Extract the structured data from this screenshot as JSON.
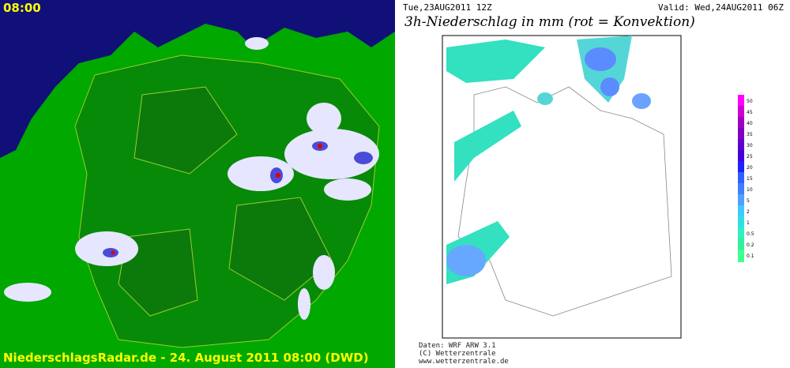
{
  "radar": {
    "time": "08:00",
    "caption": "NiederschlagsRadar.de - 24. August 2011 08:00 (DWD)"
  },
  "model": {
    "run": "Tue,23AUG2011 12Z",
    "valid": "Valid: Wed,24AUG2011 06Z",
    "title": "3h-Niederschlag in mm (rot = Konvektion)",
    "scale": [
      50,
      45,
      40,
      35,
      30,
      25,
      20,
      15,
      10,
      5,
      2,
      1,
      0.5,
      0.2,
      0.1
    ],
    "footer": [
      "Daten: WRF ARW 3.1",
      "(C) Wetterzentrale",
      "www.wetterzentrale.de"
    ]
  }
}
